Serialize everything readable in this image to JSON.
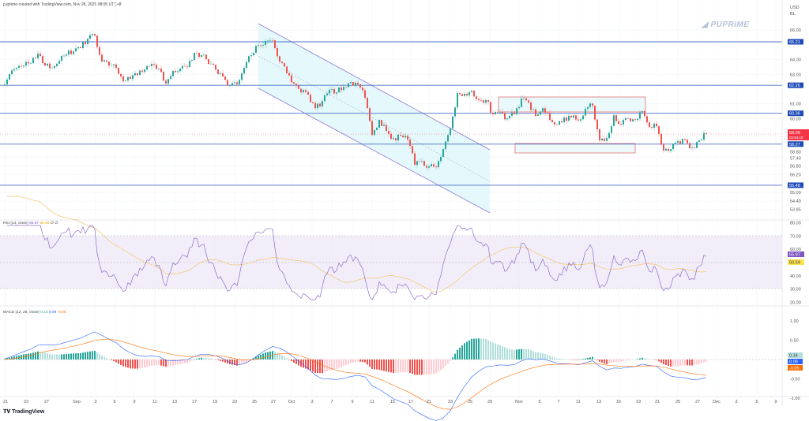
{
  "header": {
    "caption": "puprime created with TradingView.com, Nov 28, 2025 08:05 UTC+8"
  },
  "watermark": {
    "brand": "PUPRIME"
  },
  "footer": {
    "logo_text": "TradingView"
  },
  "colors": {
    "up": "#26a69a",
    "down": "#ef5350",
    "level": "#4a6fc8",
    "level_tag": "#1e4bb8",
    "last_price": "#f23645",
    "rsi": "#7e57c2",
    "rsi_ma": "#f5c26b",
    "rsi_band": "#ede7f6",
    "macd": "#2962ff",
    "signal": "#ff6d00",
    "channel_fill": "#e0f7fa",
    "channel_line": "#8c7bd6",
    "zone_line": "#e57373"
  },
  "price_axis": {
    "currency": "USD",
    "unit": "BL",
    "ticks": [
      "66.00",
      "64.00",
      "63.00",
      "61.00",
      "60.00",
      "58.80",
      "57.40",
      "56.80",
      "56.20",
      "55.00",
      "54.40",
      "53.85"
    ],
    "last_price": "58.96",
    "countdown": "02:54:10"
  },
  "rsi": {
    "title": "RSI (14, close)",
    "value": "55.97",
    "ma_value": "50.59",
    "extra": "∅ ∅",
    "ticks": [
      "80.00",
      "70.00",
      "60.00",
      "40.00",
      "30.00",
      "20.00"
    ]
  },
  "macd": {
    "title": "MACD (12, 26, close)",
    "histogram": "0.14",
    "macd_value": "0.09",
    "signal_value": "-0.05",
    "ticks": [
      "1.00",
      "0.50",
      "-0.50",
      "-1.00"
    ]
  },
  "chart_data": {
    "type": "candlestick",
    "x_ticks": [
      "21",
      "23",
      "27",
      "Sep",
      "3",
      "5",
      "9",
      "11",
      "13",
      "17",
      "19",
      "23",
      "25",
      "27",
      "Oct",
      "3",
      "7",
      "9",
      "11",
      "15",
      "17",
      "21",
      "23",
      "25",
      "29",
      "Nov",
      "5",
      "7",
      "11",
      "13",
      "15",
      "19",
      "21",
      "25",
      "27",
      "Dec",
      "3",
      "5",
      "9"
    ],
    "levels": [
      65.21,
      62.26,
      60.36,
      58.27,
      55.48
    ],
    "close": [
      62.32,
      63.01,
      63.44,
      63.6,
      63.76,
      64.4,
      63.6,
      63.44,
      63.92,
      64.35,
      64.56,
      64.78,
      65.42,
      65.63,
      63.87,
      63.6,
      63.44,
      62.53,
      62.69,
      62.96,
      63.33,
      63.71,
      63.39,
      62.37,
      63.23,
      63.39,
      63.49,
      64.46,
      64.3,
      63.71,
      63.33,
      62.85,
      62.26,
      62.32,
      63.44,
      64.3,
      64.99,
      65.26,
      65.31,
      63.87,
      63.07,
      62.37,
      61.78,
      61.62,
      60.71,
      61.19,
      61.96,
      61.78,
      62.16,
      62.48,
      62.32,
      61.41,
      58.89,
      59.91,
      59.16,
      58.68,
      58.84,
      58.57,
      56.86,
      57.13,
      56.76,
      56.7,
      57.93,
      59.32,
      61.73,
      61.68,
      61.89,
      61.25,
      61.25,
      60.29,
      60.45,
      60.02,
      60.29,
      61.36,
      61.09,
      60.18,
      60.71,
      59.91,
      59.59,
      60.07,
      60.07,
      59.86,
      60.66,
      60.87,
      58.52,
      58.68,
      60.23,
      59.59,
      60.02,
      59.91,
      60.5,
      59.43,
      59.48,
      57.83,
      57.93,
      58.47,
      58.57,
      58.04,
      58.52,
      58.96
    ],
    "rsi_band": [
      30,
      70
    ],
    "rsi_ylim": [
      20,
      80
    ],
    "macd_ylim": [
      -1,
      1
    ]
  }
}
